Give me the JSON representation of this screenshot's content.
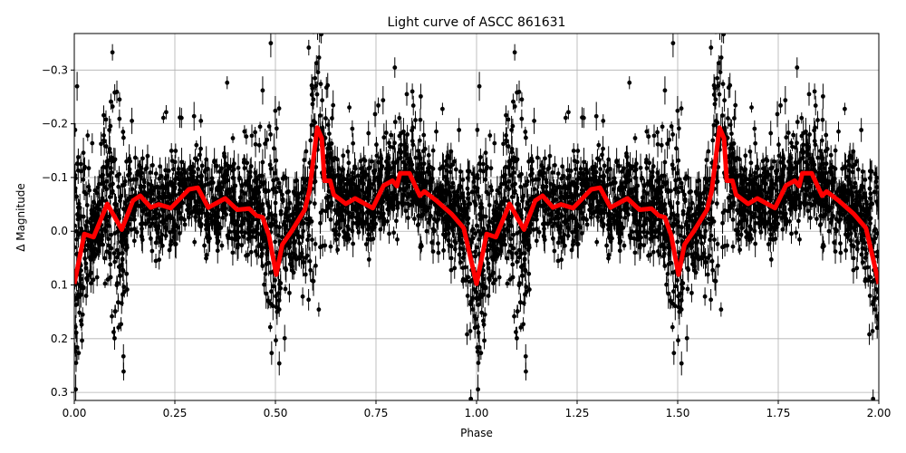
{
  "chart_data": {
    "type": "scatter",
    "title": "Light curve of ASCC 861631",
    "xlabel": "Phase",
    "ylabel": "Δ Magnitude",
    "xlim": [
      0,
      2
    ],
    "ylim": [
      0.315,
      -0.368
    ],
    "y_inverted": true,
    "grid": true,
    "x_ticks": [
      "0.00",
      "0.25",
      "0.50",
      "0.75",
      "1.00",
      "1.25",
      "1.50",
      "1.75",
      "2.00"
    ],
    "x_tick_values": [
      0,
      0.25,
      0.5,
      0.75,
      1,
      1.25,
      1.5,
      1.75,
      2
    ],
    "y_ticks": [
      "−0.3",
      "−0.2",
      "−0.1",
      "0.0",
      "0.1",
      "0.2",
      "0.3"
    ],
    "y_tick_values": [
      -0.3,
      -0.2,
      -0.1,
      0,
      0.1,
      0.2,
      0.3
    ],
    "observations": {
      "marker_color": "#000000",
      "error_bars": true,
      "typical_scatter_mag": 0.04,
      "eclipse_scatter_mag": 0.1,
      "phase_range": [
        0,
        1
      ],
      "repeated_over_two_cycles": true
    },
    "model_curve": {
      "color": "#ff0000",
      "phase": [
        0.0,
        0.025,
        0.048,
        0.082,
        0.118,
        0.146,
        0.164,
        0.19,
        0.21,
        0.24,
        0.285,
        0.307,
        0.333,
        0.375,
        0.405,
        0.435,
        0.453,
        0.468,
        0.484,
        0.502,
        0.517,
        0.54,
        0.573,
        0.585,
        0.604,
        0.615,
        0.622,
        0.636,
        0.645,
        0.675,
        0.698,
        0.742,
        0.769,
        0.791,
        0.802,
        0.81,
        0.833,
        0.859,
        0.87,
        0.9,
        0.938,
        0.968,
        1.0,
        1.025,
        1.048,
        1.082,
        1.118,
        1.146,
        1.164,
        1.19,
        1.21,
        1.24,
        1.285,
        1.307,
        1.333,
        1.375,
        1.405,
        1.435,
        1.453,
        1.468,
        1.484,
        1.502,
        1.517,
        1.54,
        1.573,
        1.585,
        1.604,
        1.615,
        1.622,
        1.636,
        1.645,
        1.675,
        1.698,
        1.742,
        1.769,
        1.791,
        1.802,
        1.81,
        1.833,
        1.859,
        1.87,
        1.9,
        1.938,
        1.968,
        2.0
      ],
      "magnitude": [
        0.098,
        0.005,
        0.011,
        -0.051,
        -0.003,
        -0.057,
        -0.066,
        -0.044,
        -0.05,
        -0.043,
        -0.078,
        -0.081,
        -0.044,
        -0.061,
        -0.04,
        -0.042,
        -0.029,
        -0.026,
        0.008,
        0.081,
        0.025,
        0.0,
        -0.04,
        -0.077,
        -0.193,
        -0.173,
        -0.094,
        -0.094,
        -0.068,
        -0.051,
        -0.061,
        -0.043,
        -0.085,
        -0.094,
        -0.084,
        -0.108,
        -0.108,
        -0.066,
        -0.074,
        -0.057,
        -0.032,
        -0.006,
        0.098,
        0.005,
        0.011,
        -0.051,
        -0.003,
        -0.057,
        -0.066,
        -0.044,
        -0.05,
        -0.043,
        -0.078,
        -0.081,
        -0.044,
        -0.061,
        -0.04,
        -0.042,
        -0.029,
        -0.026,
        0.008,
        0.081,
        0.025,
        0.0,
        -0.04,
        -0.077,
        -0.193,
        -0.173,
        -0.094,
        -0.094,
        -0.068,
        -0.051,
        -0.061,
        -0.043,
        -0.085,
        -0.094,
        -0.084,
        -0.108,
        -0.108,
        -0.066,
        -0.074,
        -0.057,
        -0.032,
        -0.006,
        0.098
      ]
    }
  }
}
